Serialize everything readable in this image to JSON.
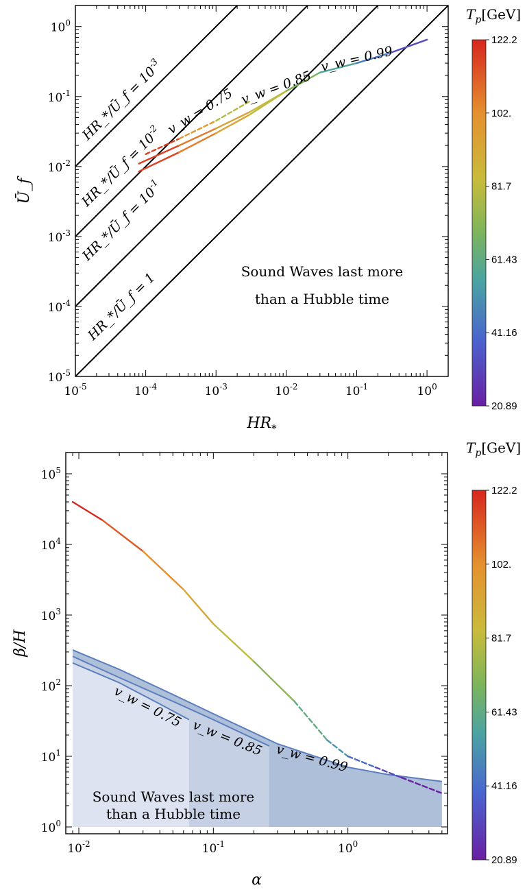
{
  "chart_data": [
    {
      "type": "line",
      "xlabel": "HR_*",
      "ylabel": "Ū_f",
      "xscale": "log",
      "yscale": "log",
      "xlim": [
        1e-05,
        2
      ],
      "ylim": [
        1e-05,
        2
      ],
      "x_tick_labels": [
        "10^-5",
        "10^-4",
        "10^-3",
        "10^-2",
        "10^-1",
        "10^0"
      ],
      "y_tick_labels": [
        "10^-5",
        "10^-4",
        "10^-3",
        "10^-2",
        "10^-1",
        "10^0"
      ],
      "reference_lines": [
        {
          "label_base": "HR_*/Ū_f = 10",
          "label_exp": "-3",
          "ratio": 0.001
        },
        {
          "label_base": "HR_*/Ū_f = 10",
          "label_exp": "-2",
          "ratio": 0.01
        },
        {
          "label_base": "HR_*/Ū_f = 10",
          "label_exp": "-1",
          "ratio": 0.1
        },
        {
          "label_base": "HR_*/Ū_f = 1",
          "label_exp": "",
          "ratio": 1
        }
      ],
      "series": [
        {
          "name": "v_w = 0.75",
          "x": [
            0.0001,
            0.0003,
            0.001,
            0.003
          ],
          "y": [
            0.015,
            0.025,
            0.045,
            0.085
          ]
        },
        {
          "name": "v_w = 0.85",
          "x": [
            8e-05,
            0.0003,
            0.001,
            0.003,
            0.01,
            0.018
          ],
          "y": [
            0.011,
            0.02,
            0.035,
            0.06,
            0.12,
            0.165
          ]
        },
        {
          "name": "v_w = 0.99",
          "x": [
            8e-05,
            0.0003,
            0.001,
            0.003,
            0.01,
            0.03,
            0.1,
            0.3,
            1
          ],
          "y": [
            0.0085,
            0.016,
            0.03,
            0.055,
            0.12,
            0.22,
            0.3,
            0.42,
            0.65
          ]
        }
      ],
      "annotation": [
        "Sound Waves last more",
        "than a Hubble time"
      ],
      "colorbar": {
        "title": "T_p[GeV]",
        "ticks": [
          "122.2",
          "102.",
          "81.7",
          "61.43",
          "41.16",
          "20.89"
        ]
      }
    },
    {
      "type": "line",
      "xlabel": "α",
      "ylabel": "β/H",
      "xscale": "log",
      "yscale": "log",
      "xlim": [
        0.008,
        5.5
      ],
      "ylim": [
        0.8,
        200000
      ],
      "x_tick_labels": [
        "10^-2",
        "10^-1",
        "10^0"
      ],
      "y_tick_labels": [
        "10^0",
        "10^1",
        "10^2",
        "10^3",
        "10^4",
        "10^5"
      ],
      "curve": {
        "x": [
          0.009,
          0.015,
          0.03,
          0.06,
          0.1,
          0.2,
          0.4,
          0.7,
          1.0,
          1.6,
          2.5,
          5.0
        ],
        "y": [
          40000,
          22000,
          8000,
          2300,
          750,
          220,
          60,
          17,
          10,
          7,
          5,
          3
        ]
      },
      "bounds": [
        {
          "name": "v_w = 0.75",
          "x_end": 0.066,
          "x": [
            0.009,
            0.02,
            0.04,
            0.066
          ],
          "y": [
            210,
            110,
            55,
            33
          ]
        },
        {
          "name": "v_w = 0.85",
          "x_end": 0.26,
          "x": [
            0.009,
            0.02,
            0.05,
            0.1,
            0.26
          ],
          "y": [
            260,
            130,
            60,
            33,
            14
          ]
        },
        {
          "name": "v_w = 0.99",
          "x_end": 5.0,
          "x": [
            0.009,
            0.02,
            0.05,
            0.1,
            0.3,
            1.0,
            2.0,
            5.0
          ],
          "y": [
            320,
            170,
            75,
            40,
            15,
            7,
            5.5,
            4.4
          ]
        }
      ],
      "annotation": [
        "Sound Waves last more",
        "than a Hubble time"
      ],
      "colorbar": {
        "title": "T_p[GeV]",
        "ticks": [
          "122.2",
          "102.",
          "81.7",
          "61.43",
          "41.16",
          "20.89"
        ]
      }
    }
  ]
}
